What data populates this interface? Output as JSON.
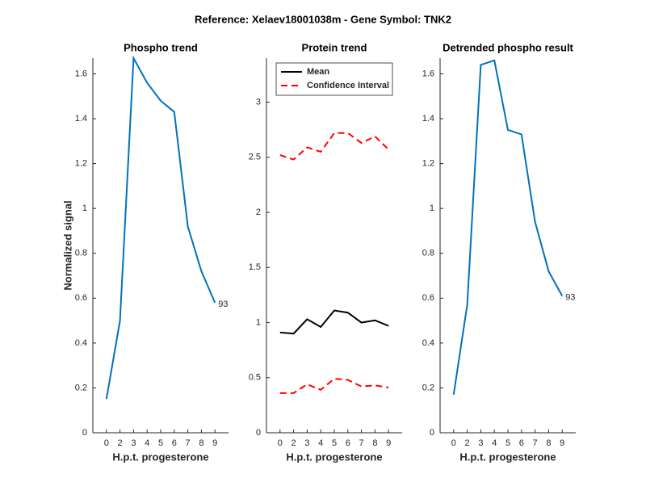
{
  "title": "Reference:  Xelaev18001038m - Gene Symbol:  TNK2",
  "chart_data": [
    {
      "type": "line",
      "title": "Phospho trend",
      "xlabel": "H.p.t. progesterone",
      "ylabel": "Normalized signal",
      "categories": [
        "0",
        "2",
        "3",
        "4",
        "5",
        "6",
        "7",
        "8",
        "9"
      ],
      "series": [
        {
          "color": "#0072bd",
          "values": [
            0.15,
            0.5,
            1.67,
            1.56,
            1.48,
            1.43,
            0.92,
            0.72,
            0.58
          ]
        }
      ],
      "annotation": "93",
      "ylim": [
        0,
        1.67
      ],
      "yticks": [
        0,
        0.2,
        0.4,
        0.6,
        0.8,
        1,
        1.2,
        1.4,
        1.6
      ]
    },
    {
      "type": "band",
      "title": "Protein trend",
      "xlabel": "H.p.t. progesterone",
      "categories": [
        "0",
        "2",
        "3",
        "4",
        "5",
        "6",
        "7",
        "8",
        "9"
      ],
      "series": [
        {
          "name": "Mean",
          "color": "#000000",
          "values": [
            0.91,
            0.9,
            1.03,
            0.96,
            1.11,
            1.09,
            1.0,
            1.02,
            0.97
          ]
        },
        {
          "name": "Confidence Interval",
          "color": "#ff0000",
          "dashed": true,
          "upper": [
            2.52,
            2.48,
            2.59,
            2.55,
            2.72,
            2.72,
            2.63,
            2.69,
            2.57
          ],
          "lower": [
            0.36,
            0.36,
            0.44,
            0.39,
            0.49,
            0.48,
            0.42,
            0.43,
            0.41
          ]
        }
      ],
      "legend": "top-left",
      "ylim": [
        0,
        3.4
      ],
      "yticks": [
        0,
        0.5,
        1,
        1.5,
        2,
        2.5,
        3
      ]
    },
    {
      "type": "line",
      "title": "Detrended phospho result",
      "xlabel": "H.p.t. progesterone",
      "categories": [
        "0",
        "2",
        "3",
        "4",
        "5",
        "6",
        "7",
        "8",
        "9"
      ],
      "series": [
        {
          "color": "#0072bd",
          "values": [
            0.17,
            0.57,
            1.64,
            1.66,
            1.35,
            1.33,
            0.94,
            0.72,
            0.61
          ]
        }
      ],
      "annotation": "93",
      "ylim": [
        0,
        1.67
      ],
      "yticks": [
        0,
        0.2,
        0.4,
        0.6,
        0.8,
        1,
        1.2,
        1.4,
        1.6
      ]
    }
  ]
}
